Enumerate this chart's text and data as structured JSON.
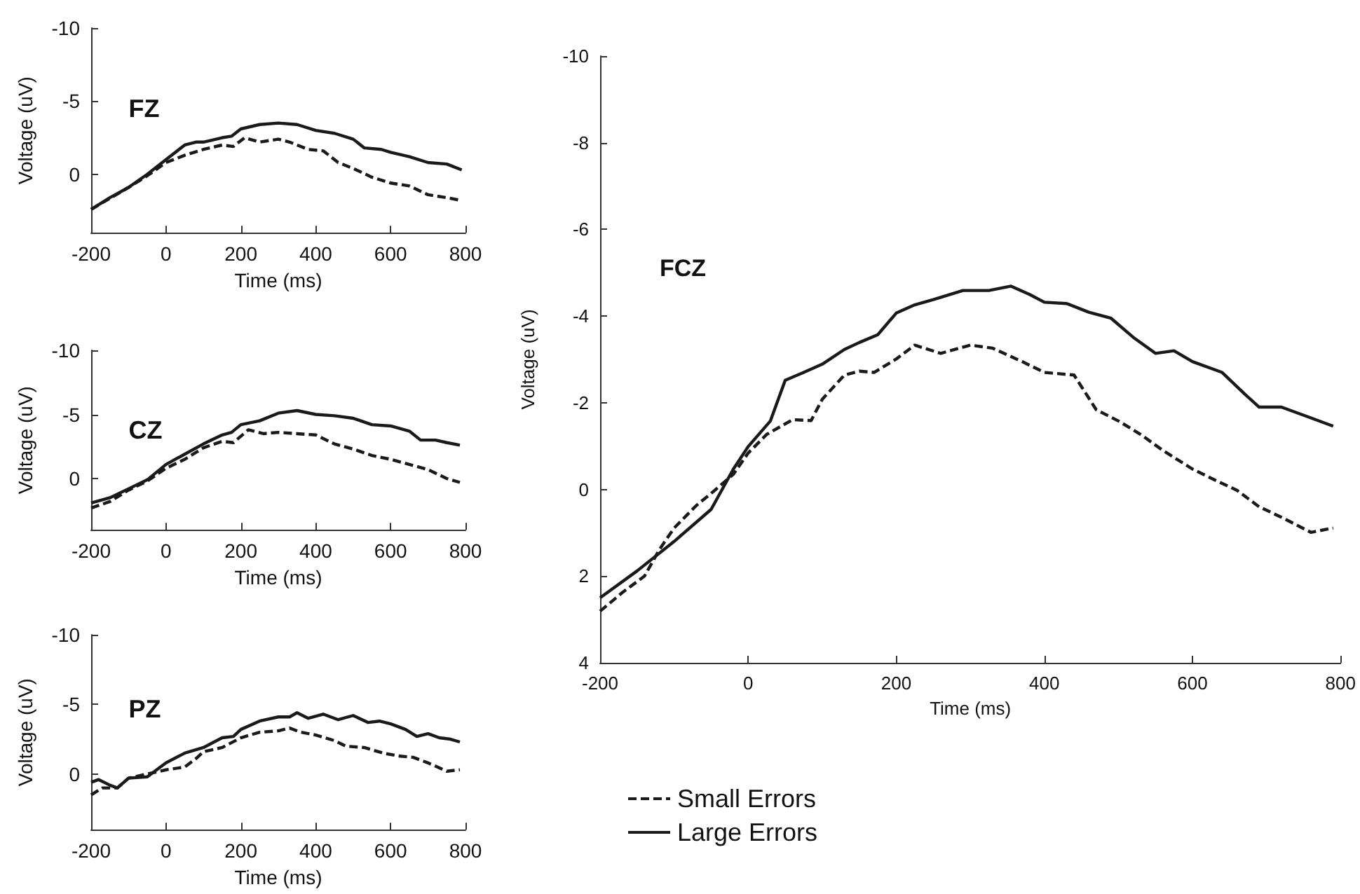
{
  "chart_data": [
    {
      "type": "line",
      "xlabel": "Time (ms)",
      "ylabel": "Voltage (uV)",
      "annotations": [
        "FZ"
      ],
      "xlim": [
        -200,
        800
      ],
      "xticks": [
        -200,
        0,
        200,
        400,
        600,
        800
      ],
      "ylim": [
        4,
        -10
      ],
      "yticks": [
        -10,
        -5,
        0
      ],
      "grid": false,
      "marker": "none",
      "series": [
        {
          "color": "#1a1a1a",
          "line_style": "dashed",
          "x": [
            -200,
            -100,
            -50,
            0,
            50,
            100,
            150,
            180,
            210,
            250,
            300,
            330,
            380,
            420,
            460,
            500,
            550,
            600,
            650,
            700,
            750,
            790
          ],
          "values": [
            2.4,
            0.9,
            0.1,
            -0.8,
            -1.3,
            -1.7,
            -2.0,
            -1.9,
            -2.5,
            -2.2,
            -2.4,
            -2.2,
            -1.7,
            -1.6,
            -0.8,
            -0.4,
            0.2,
            0.6,
            0.8,
            1.4,
            1.6,
            1.8
          ]
        },
        {
          "color": "#1a1a1a",
          "line_style": "solid",
          "x": [
            -200,
            -150,
            -100,
            -50,
            0,
            50,
            80,
            100,
            150,
            175,
            200,
            250,
            300,
            350,
            400,
            450,
            500,
            530,
            575,
            600,
            650,
            700,
            750,
            790
          ],
          "values": [
            2.4,
            1.6,
            0.9,
            0.0,
            -1.0,
            -2.0,
            -2.2,
            -2.2,
            -2.5,
            -2.6,
            -3.1,
            -3.4,
            -3.5,
            -3.4,
            -3.0,
            -2.8,
            -2.4,
            -1.8,
            -1.7,
            -1.5,
            -1.2,
            -0.8,
            -0.7,
            -0.3
          ]
        }
      ]
    },
    {
      "type": "line",
      "xlabel": "Time (ms)",
      "ylabel": "Voltage (uV)",
      "annotations": [
        "CZ"
      ],
      "xlim": [
        -200,
        800
      ],
      "xticks": [
        -200,
        0,
        200,
        400,
        600,
        800
      ],
      "ylim": [
        4,
        -10
      ],
      "yticks": [
        -10,
        -5,
        0
      ],
      "grid": false,
      "marker": "none",
      "series": [
        {
          "color": "#1a1a1a",
          "line_style": "dashed",
          "x": [
            -200,
            -150,
            -100,
            -50,
            0,
            50,
            100,
            150,
            180,
            220,
            260,
            300,
            350,
            400,
            450,
            500,
            550,
            600,
            650,
            700,
            750,
            785
          ],
          "values": [
            2.3,
            1.8,
            0.9,
            0.2,
            -0.8,
            -1.5,
            -2.4,
            -2.9,
            -2.8,
            -3.8,
            -3.5,
            -3.6,
            -3.5,
            -3.4,
            -2.7,
            -2.3,
            -1.8,
            -1.5,
            -1.1,
            -0.7,
            0,
            0.3
          ]
        },
        {
          "color": "#1a1a1a",
          "line_style": "solid",
          "x": [
            -200,
            -150,
            -100,
            -50,
            0,
            50,
            100,
            150,
            175,
            200,
            250,
            300,
            350,
            400,
            450,
            500,
            550,
            600,
            650,
            680,
            720,
            750,
            785
          ],
          "values": [
            1.9,
            1.5,
            0.8,
            0.1,
            -1.1,
            -1.9,
            -2.7,
            -3.4,
            -3.6,
            -4.2,
            -4.5,
            -5.1,
            -5.3,
            -5.0,
            -4.9,
            -4.7,
            -4.2,
            -4.1,
            -3.7,
            -3.0,
            -3.0,
            -2.8,
            -2.6
          ]
        }
      ]
    },
    {
      "type": "line",
      "xlabel": "Time (ms)",
      "ylabel": "Voltage (uV)",
      "annotations": [
        "PZ"
      ],
      "xlim": [
        -200,
        800
      ],
      "xticks": [
        -200,
        0,
        200,
        400,
        600,
        800
      ],
      "ylim": [
        4,
        -10
      ],
      "yticks": [
        -10,
        -5,
        0
      ],
      "grid": false,
      "marker": "none",
      "series": [
        {
          "color": "#1a1a1a",
          "line_style": "dashed",
          "x": [
            -200,
            -170,
            -130,
            -100,
            -50,
            0,
            50,
            80,
            100,
            150,
            200,
            250,
            300,
            330,
            360,
            400,
            450,
            480,
            530,
            580,
            620,
            660,
            700,
            750,
            785
          ],
          "values": [
            1.5,
            1.0,
            1.0,
            0.3,
            0.0,
            -0.3,
            -0.5,
            -1.1,
            -1.6,
            -1.9,
            -2.6,
            -3.0,
            -3.1,
            -3.3,
            -3.0,
            -2.8,
            -2.4,
            -2.0,
            -1.9,
            -1.5,
            -1.3,
            -1.2,
            -0.8,
            -0.2,
            -0.3
          ]
        },
        {
          "color": "#1a1a1a",
          "line_style": "solid",
          "x": [
            -200,
            -180,
            -150,
            -130,
            -100,
            -50,
            0,
            50,
            100,
            150,
            180,
            200,
            250,
            300,
            330,
            350,
            380,
            420,
            460,
            500,
            540,
            570,
            600,
            640,
            670,
            700,
            730,
            760,
            785
          ],
          "values": [
            0.6,
            0.4,
            0.8,
            1.0,
            0.3,
            0.2,
            -0.8,
            -1.5,
            -1.9,
            -2.6,
            -2.7,
            -3.2,
            -3.8,
            -4.1,
            -4.1,
            -4.4,
            -4.0,
            -4.3,
            -3.9,
            -4.2,
            -3.7,
            -3.8,
            -3.6,
            -3.2,
            -2.7,
            -2.9,
            -2.6,
            -2.5,
            -2.3
          ]
        }
      ]
    },
    {
      "type": "line",
      "xlabel": "Time (ms)",
      "ylabel": "Voltage (uV)",
      "annotations": [
        "FCZ"
      ],
      "xlim": [
        -200,
        800
      ],
      "xticks": [
        -200,
        0,
        200,
        400,
        600,
        800
      ],
      "ylim": [
        4,
        -10
      ],
      "yticks": [
        -10,
        -8,
        -6,
        -4,
        -2,
        0,
        2,
        4
      ],
      "grid": false,
      "marker": "none",
      "legend": "bottom left",
      "series": [
        {
          "name": "Small Errors",
          "color": "#1a1a1a",
          "line_style": "dashed",
          "x": [
            -200,
            -170,
            -140,
            -120,
            -100,
            -70,
            -50,
            -20,
            0,
            25,
            60,
            85,
            100,
            130,
            150,
            170,
            200,
            225,
            260,
            300,
            330,
            370,
            400,
            440,
            470,
            500,
            530,
            560,
            600,
            630,
            660,
            690,
            720,
            760,
            790
          ],
          "values": [
            2.81,
            2.38,
            2.0,
            1.39,
            0.89,
            0.37,
            0.09,
            -0.35,
            -0.84,
            -1.27,
            -1.61,
            -1.59,
            -2.08,
            -2.64,
            -2.73,
            -2.7,
            -3.01,
            -3.33,
            -3.14,
            -3.33,
            -3.26,
            -2.95,
            -2.7,
            -2.64,
            -1.84,
            -1.58,
            -1.27,
            -0.9,
            -0.47,
            -0.22,
            0.02,
            0.4,
            0.64,
            0.99,
            0.89
          ]
        },
        {
          "name": "Large Errors",
          "color": "#1a1a1a",
          "line_style": "solid",
          "x": [
            -200,
            -150,
            -100,
            -50,
            -20,
            0,
            30,
            50,
            75,
            100,
            130,
            150,
            175,
            200,
            225,
            250,
            290,
            325,
            355,
            380,
            400,
            430,
            460,
            490,
            520,
            550,
            575,
            600,
            640,
            670,
            690,
            720,
            760,
            790
          ],
          "values": [
            2.5,
            1.88,
            1.2,
            0.46,
            -0.47,
            -0.99,
            -1.58,
            -2.52,
            -2.7,
            -2.89,
            -3.23,
            -3.39,
            -3.57,
            -4.07,
            -4.26,
            -4.38,
            -4.59,
            -4.59,
            -4.69,
            -4.5,
            -4.32,
            -4.29,
            -4.09,
            -3.95,
            -3.51,
            -3.14,
            -3.2,
            -2.95,
            -2.7,
            -2.21,
            -1.9,
            -1.9,
            -1.65,
            -1.46
          ]
        }
      ]
    }
  ]
}
